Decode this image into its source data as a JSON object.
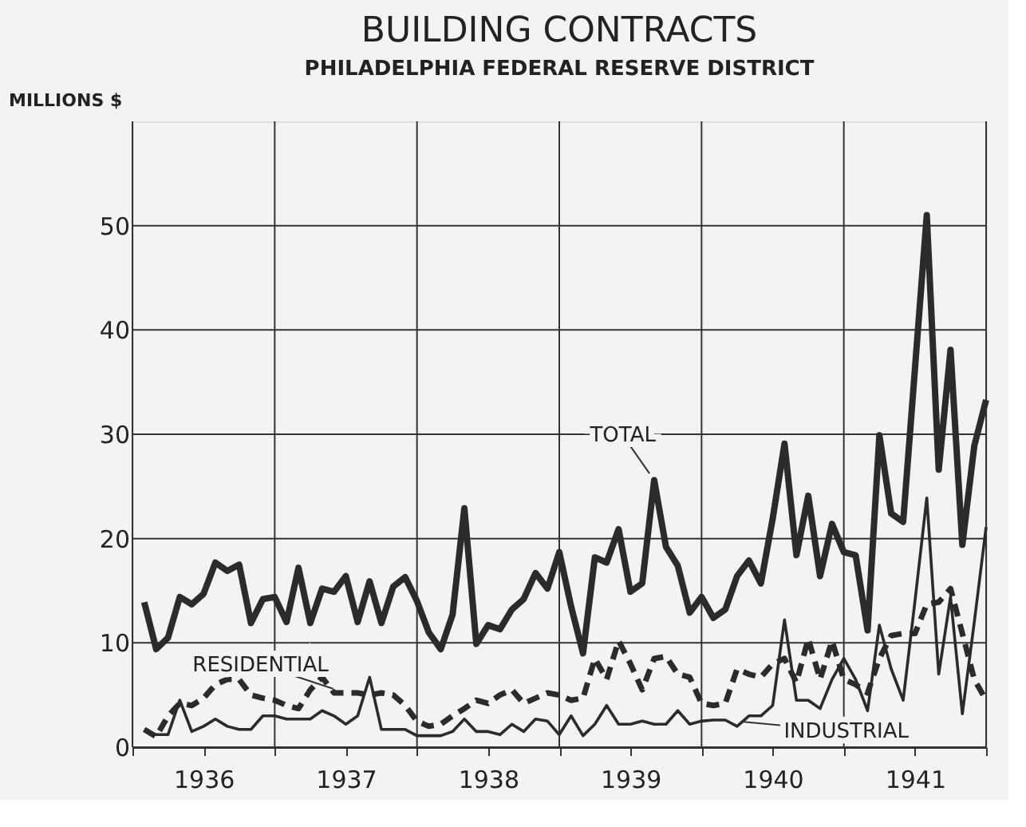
{
  "chart_data": {
    "type": "line",
    "title": "BUILDING CONTRACTS",
    "subtitle": "PHILADELPHIA FEDERAL RESERVE DISTRICT",
    "ylabel": "MILLIONS $",
    "x": [
      1936.083,
      1936.167,
      1936.25,
      1936.333,
      1936.417,
      1936.5,
      1936.583,
      1936.667,
      1936.75,
      1936.833,
      1936.917,
      1937,
      1937.083,
      1937.167,
      1937.25,
      1937.333,
      1937.417,
      1937.5,
      1937.583,
      1937.667,
      1937.75,
      1937.833,
      1937.917,
      1938,
      1938.083,
      1938.167,
      1938.25,
      1938.333,
      1938.417,
      1938.5,
      1938.583,
      1938.667,
      1938.75,
      1938.833,
      1938.917,
      1939,
      1939.083,
      1939.167,
      1939.25,
      1939.333,
      1939.417,
      1939.5,
      1939.583,
      1939.667,
      1939.75,
      1939.833,
      1939.917,
      1940,
      1940.083,
      1940.167,
      1940.25,
      1940.333,
      1940.417,
      1940.5,
      1940.583,
      1940.667,
      1940.75,
      1940.833,
      1940.917,
      1941,
      1941.083,
      1941.167,
      1941.25,
      1941.333,
      1941.417,
      1941.5,
      1941.583,
      1941.667,
      1941.75,
      1941.833,
      1941.917,
      1942
    ],
    "series": [
      {
        "name": "TOTAL",
        "color": "#2b2b2b",
        "line_style": "solid",
        "values": [
          13.9,
          9.4,
          10.5,
          14.4,
          13.7,
          14.7,
          17.7,
          16.9,
          17.5,
          11.9,
          14.2,
          14.4,
          12.0,
          17.2,
          11.9,
          15.2,
          14.9,
          16.4,
          12.0,
          15.9,
          11.9,
          15.4,
          16.3,
          14.0,
          11.0,
          9.4,
          12.7,
          22.9,
          9.9,
          11.7,
          11.3,
          13.2,
          14.2,
          16.7,
          15.2,
          18.7,
          13.5,
          9.0,
          18.2,
          17.7,
          20.9,
          14.9,
          15.7,
          25.6,
          19.2,
          17.4,
          12.9,
          14.4,
          12.4,
          13.2,
          16.4,
          17.9,
          15.7,
          21.9,
          29.1,
          18.4,
          24.1,
          16.4,
          21.4,
          18.7,
          18.4,
          11.2,
          29.9,
          22.4,
          21.6,
          36.3,
          51.0,
          26.6,
          38.1,
          19.4,
          28.9,
          33.3
        ]
      },
      {
        "name": "RESIDENTIAL",
        "color": "#2b2b2b",
        "line_style": "dashed",
        "values": [
          1.7,
          1.0,
          3.0,
          4.2,
          4.0,
          4.7,
          6.0,
          6.5,
          6.5,
          5.0,
          4.7,
          4.5,
          4.0,
          3.7,
          5.5,
          6.7,
          5.2,
          5.2,
          5.2,
          5.0,
          5.2,
          5.0,
          4.0,
          2.5,
          2.0,
          2.2,
          3.0,
          3.7,
          4.5,
          4.2,
          5.0,
          5.5,
          4.2,
          4.7,
          5.2,
          5.0,
          4.5,
          4.7,
          8.5,
          6.5,
          10.2,
          8.0,
          5.5,
          8.5,
          8.7,
          7.0,
          6.7,
          4.2,
          4.0,
          4.2,
          7.5,
          7.0,
          6.7,
          8.0,
          8.5,
          6.2,
          10.4,
          6.5,
          10.2,
          6.5,
          6.0,
          5.2,
          8.5,
          10.7,
          10.9,
          10.9,
          13.7,
          13.9,
          15.2,
          10.9,
          6.5,
          4.5
        ]
      },
      {
        "name": "INDUSTRIAL",
        "color": "#2b2b2b",
        "line_style": "solid",
        "values": [
          1.7,
          1.2,
          1.2,
          4.5,
          1.5,
          2.0,
          2.7,
          2.0,
          1.7,
          1.7,
          3.0,
          3.0,
          2.7,
          2.7,
          2.7,
          3.5,
          3.0,
          2.2,
          3.0,
          6.7,
          1.7,
          1.7,
          1.7,
          1.1,
          1.1,
          1.1,
          1.5,
          2.7,
          1.5,
          1.5,
          1.2,
          2.2,
          1.5,
          2.7,
          2.5,
          1.2,
          3.0,
          1.1,
          2.2,
          4.0,
          2.2,
          2.2,
          2.5,
          2.2,
          2.2,
          3.5,
          2.2,
          2.5,
          2.6,
          2.6,
          2.0,
          3.0,
          3.0,
          4.0,
          12.2,
          4.5,
          4.5,
          3.7,
          6.5,
          8.5,
          6.5,
          3.5,
          11.7,
          7.5,
          4.5,
          14.0,
          23.9,
          7.0,
          14.4,
          3.2,
          12.0,
          21.1
        ]
      }
    ],
    "xlim": [
      1936,
      1942
    ],
    "xticks": [
      {
        "value": 1936,
        "label": null
      },
      {
        "value": 1936.5,
        "label": "1936"
      },
      {
        "value": 1937,
        "label": null
      },
      {
        "value": 1937.5,
        "label": "1937"
      },
      {
        "value": 1938,
        "label": null
      },
      {
        "value": 1938.5,
        "label": "1938"
      },
      {
        "value": 1939,
        "label": null
      },
      {
        "value": 1939.5,
        "label": "1939"
      },
      {
        "value": 1940,
        "label": null
      },
      {
        "value": 1940.5,
        "label": "1940"
      },
      {
        "value": 1941,
        "label": null
      },
      {
        "value": 1941.5,
        "label": "1941"
      },
      {
        "value": 1942,
        "label": null
      }
    ],
    "ylim": [
      0,
      60
    ],
    "yticks": [
      0,
      10,
      20,
      30,
      40,
      50
    ],
    "grid": true
  }
}
